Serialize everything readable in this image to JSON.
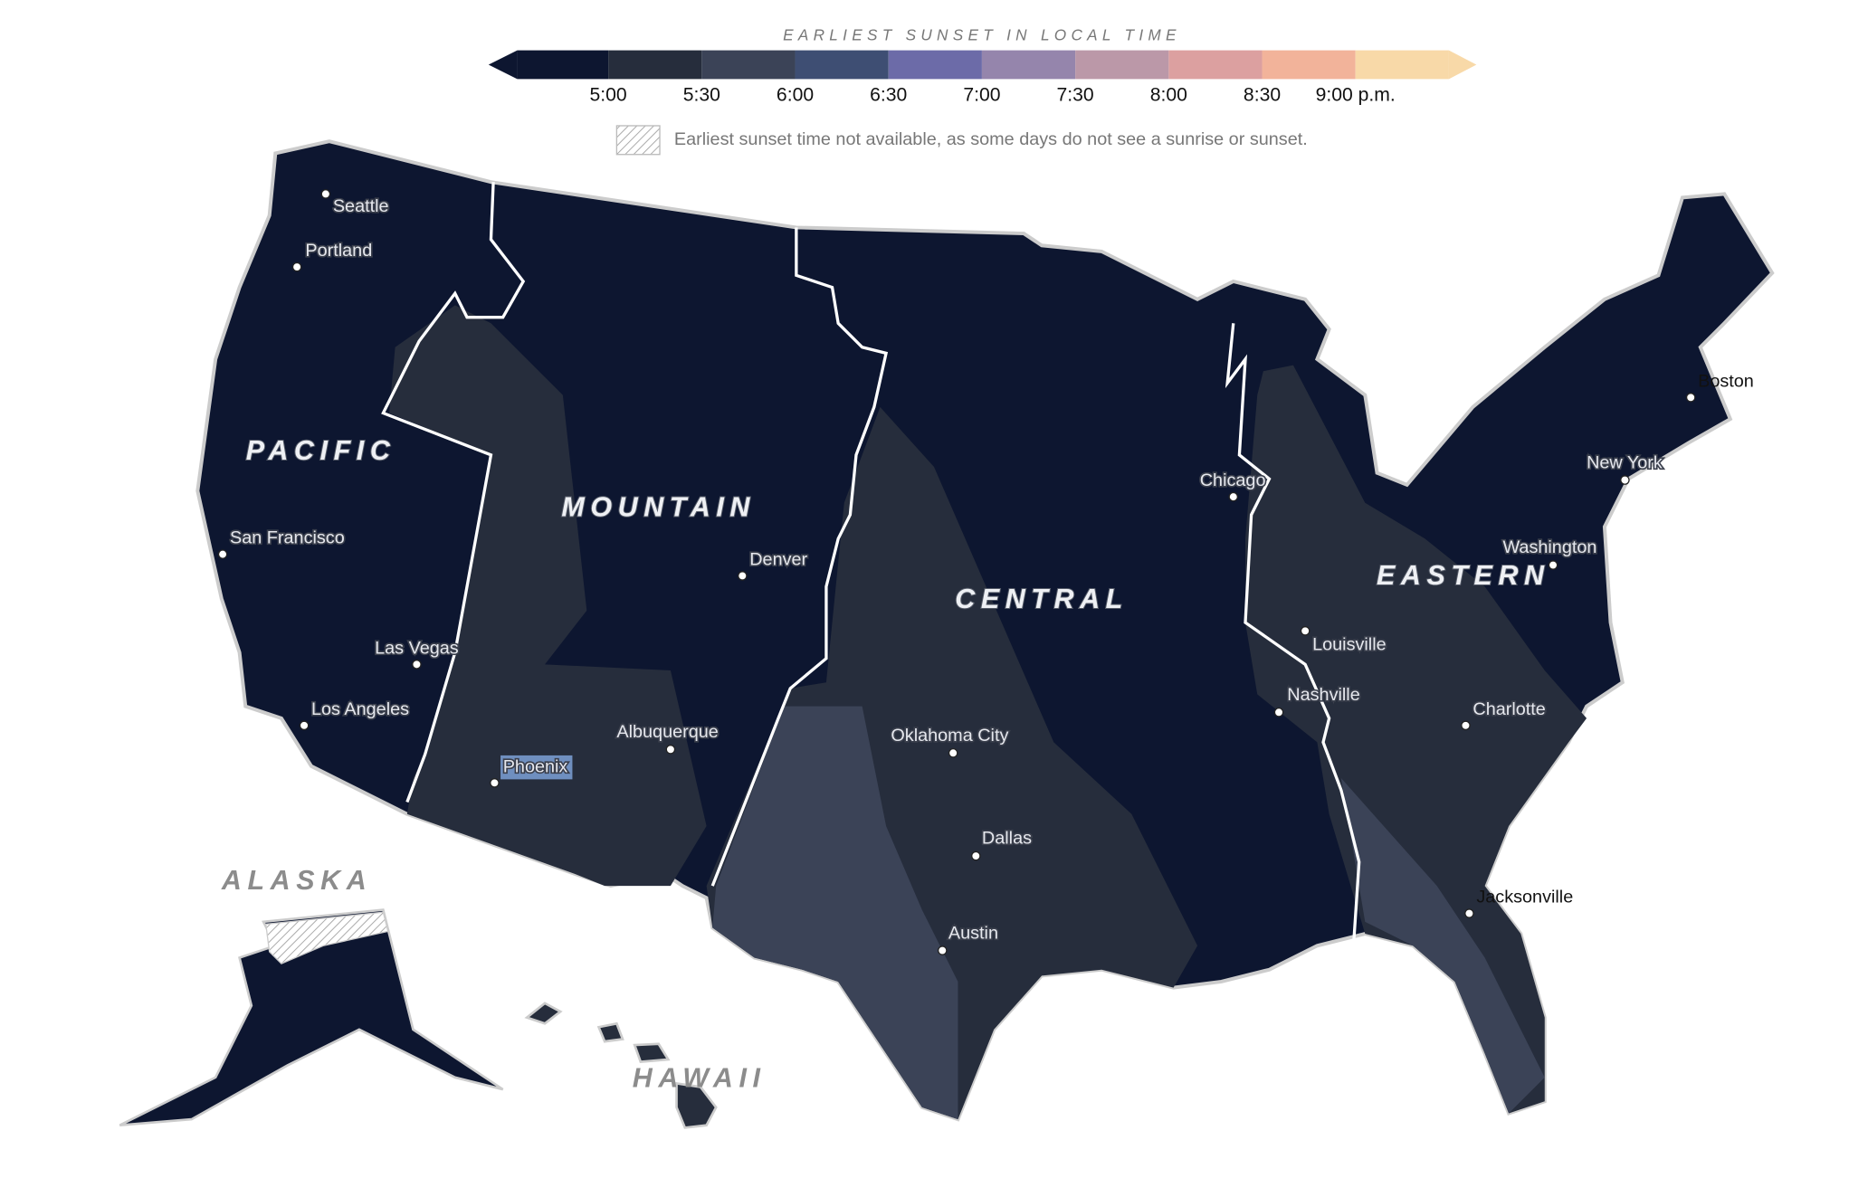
{
  "legend": {
    "title": "EARLIEST SUNSET IN LOCAL TIME",
    "colors": [
      "#0d1630",
      "#262d3c",
      "#3b4357",
      "#3e4e73",
      "#6c6ba8",
      "#9585ac",
      "#bb98a8",
      "#dca0a0",
      "#f2b39a",
      "#f8d9a8"
    ],
    "ticks": [
      "5:00",
      "5:30",
      "6:00",
      "6:30",
      "7:00",
      "7:30",
      "8:00",
      "8:30",
      "9:00 p.m."
    ],
    "note": "Earliest sunset time not available, as some days do not see a sunrise or sunset."
  },
  "zones": [
    "PACIFIC",
    "MOUNTAIN",
    "CENTRAL",
    "EASTERN",
    "ALASKA",
    "HAWAII"
  ],
  "cities": [
    "Seattle",
    "Portland",
    "San Francisco",
    "Las Vegas",
    "Los Angeles",
    "Phoenix",
    "Albuquerque",
    "Denver",
    "Oklahoma City",
    "Dallas",
    "Austin",
    "Chicago",
    "Louisville",
    "Nashville",
    "Charlotte",
    "Jacksonville",
    "Washington",
    "New York",
    "Boston"
  ]
}
